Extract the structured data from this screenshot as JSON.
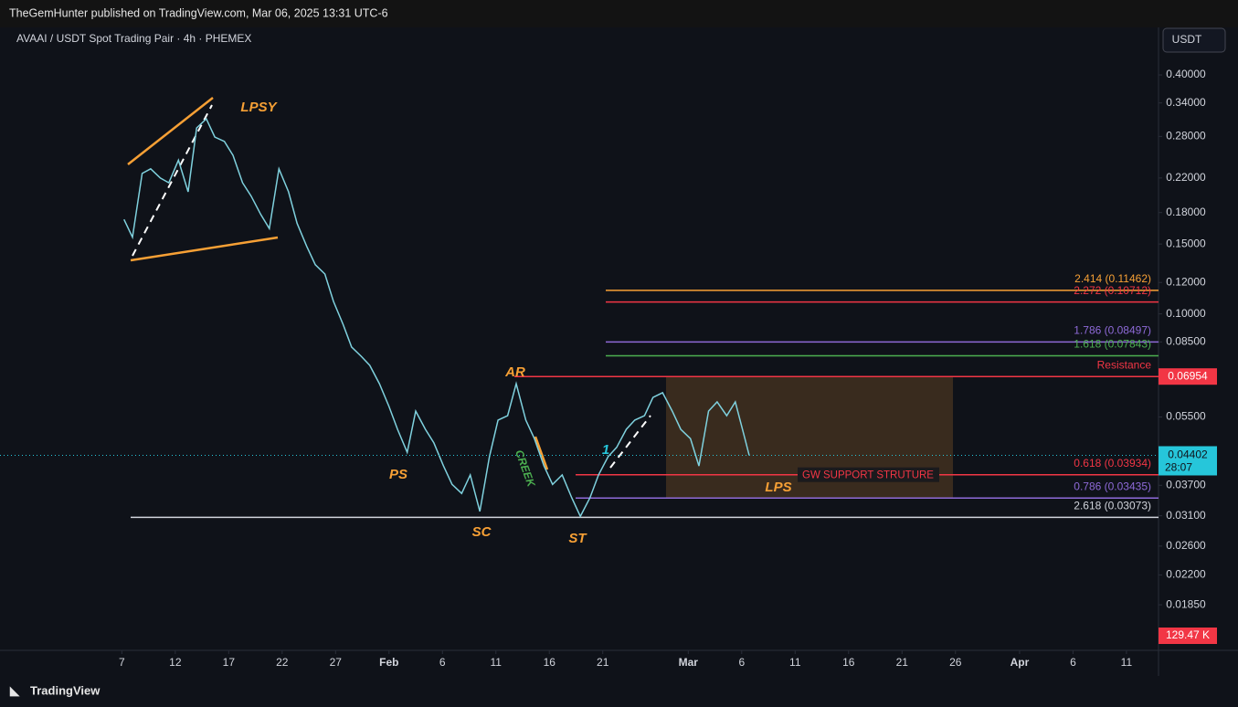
{
  "header": {
    "publisher": "TheGemHunter published on TradingView.com, Mar 06, 2025 13:31 UTC-6"
  },
  "footer": {
    "brand": "TradingView"
  },
  "chart_data": {
    "type": "line",
    "title": "AVAAI / USDT Spot Trading Pair · 4h · PHEMEX",
    "currency_button": "USDT",
    "color": "#7fd1de",
    "log_scale": true,
    "x": [
      0.2,
      1.0,
      1.9,
      2.7,
      3.6,
      4.4,
      5.3,
      6.2,
      7.0,
      7.9,
      8.7,
      9.6,
      10.4,
      11.3,
      12.1,
      13.0,
      13.8,
      14.7,
      15.6,
      16.4,
      17.3,
      18.1,
      19.0,
      19.8,
      20.7,
      21.5,
      22.4,
      23.2,
      24.1,
      25.0,
      25.8,
      26.7,
      27.5,
      28.4,
      29.2,
      30.1,
      30.9,
      31.8,
      32.6,
      33.5,
      34.4,
      35.2,
      36.1,
      36.9,
      37.8,
      38.6,
      39.5,
      40.3,
      41.2,
      42.1,
      42.9,
      43.8,
      44.6,
      45.5,
      46.3,
      47.2,
      48.0,
      48.9,
      49.7,
      50.6,
      51.5,
      52.3,
      53.2,
      54.0,
      54.9,
      55.7,
      56.6,
      57.4,
      58.3,
      58.7
    ],
    "values": [
      0.173,
      0.156,
      0.226,
      0.232,
      0.22,
      0.214,
      0.244,
      0.203,
      0.294,
      0.31,
      0.279,
      0.272,
      0.251,
      0.214,
      0.198,
      0.178,
      0.164,
      0.232,
      0.203,
      0.169,
      0.148,
      0.133,
      0.126,
      0.1075,
      0.0941,
      0.0825,
      0.0782,
      0.0742,
      0.0667,
      0.0584,
      0.0512,
      0.0448,
      0.0569,
      0.0512,
      0.0473,
      0.0414,
      0.0372,
      0.0353,
      0.0393,
      0.0318,
      0.0437,
      0.054,
      0.0554,
      0.0667,
      0.054,
      0.0485,
      0.0414,
      0.0372,
      0.0393,
      0.0344,
      0.0309,
      0.0344,
      0.0393,
      0.0437,
      0.0461,
      0.0512,
      0.054,
      0.0554,
      0.0616,
      0.0633,
      0.0569,
      0.0512,
      0.0485,
      0.0414,
      0.0569,
      0.06,
      0.0554,
      0.06,
      0.0485,
      0.04402
    ],
    "xlim": [
      -11.4,
      97.0
    ],
    "xticks": [
      {
        "value": 0,
        "label": "7"
      },
      {
        "value": 5,
        "label": "12"
      },
      {
        "value": 10,
        "label": "17"
      },
      {
        "value": 15,
        "label": "22"
      },
      {
        "value": 20,
        "label": "27"
      },
      {
        "value": 25,
        "label": "Feb"
      },
      {
        "value": 30,
        "label": "6"
      },
      {
        "value": 35,
        "label": "11"
      },
      {
        "value": 40,
        "label": "16"
      },
      {
        "value": 45,
        "label": "21"
      },
      {
        "value": 53,
        "label": "Mar"
      },
      {
        "value": 58,
        "label": "6"
      },
      {
        "value": 63,
        "label": "11"
      },
      {
        "value": 68,
        "label": "16"
      },
      {
        "value": 73,
        "label": "21"
      },
      {
        "value": 78,
        "label": "26"
      },
      {
        "value": 84,
        "label": "Apr"
      },
      {
        "value": 89,
        "label": "6"
      },
      {
        "value": 94,
        "label": "11"
      }
    ],
    "ylim": [
      0.0142,
      0.527
    ],
    "yticks": [
      {
        "value": 0.4,
        "label": "0.40000"
      },
      {
        "value": 0.34,
        "label": "0.34000"
      },
      {
        "value": 0.28,
        "label": "0.28000"
      },
      {
        "value": 0.22,
        "label": "0.22000"
      },
      {
        "value": 0.18,
        "label": "0.18000"
      },
      {
        "value": 0.15,
        "label": "0.15000"
      },
      {
        "value": 0.12,
        "label": "0.12000"
      },
      {
        "value": 0.1,
        "label": "0.10000"
      },
      {
        "value": 0.085,
        "label": "0.08500"
      },
      {
        "value": 0.055,
        "label": "0.05500"
      },
      {
        "value": 0.037,
        "label": "0.03700"
      },
      {
        "value": 0.031,
        "label": "0.03100"
      },
      {
        "value": 0.026,
        "label": "0.02600"
      },
      {
        "value": 0.022,
        "label": "0.02200"
      },
      {
        "value": 0.0185,
        "label": "0.01850"
      }
    ],
    "last_price": 0.04402,
    "countdown": "28:07",
    "levels": [
      {
        "label": "2.414 (0.11462)",
        "value": 0.11462,
        "color": "#f7a035"
      },
      {
        "label": "2.272 (0.10712)",
        "value": 0.10712,
        "color": "#f23645"
      },
      {
        "label": "1.786 (0.08497)",
        "value": 0.08497,
        "color": "#8e6ad8"
      },
      {
        "label": "1.618 (0.07843)",
        "value": 0.07843,
        "color": "#4caf50"
      },
      {
        "label": "Resistance",
        "value": 0.06954,
        "color": "#f23645"
      },
      {
        "label": "0.618 (0.03934)",
        "value": 0.03934,
        "color": "#f23645"
      },
      {
        "label": "0.786 (0.03435)",
        "value": 0.03435,
        "color": "#8e6ad8"
      },
      {
        "label": "2.618 (0.03073)",
        "value": 0.03073,
        "color": "#d1d4dc"
      }
    ],
    "support_label": "GW SUPPORT STRUTURE",
    "annotations": [
      "LPSY",
      "AR",
      "PS",
      "SC",
      "ST",
      "LPS",
      "CREEK",
      "1"
    ],
    "volume_label": "129.47 K"
  }
}
